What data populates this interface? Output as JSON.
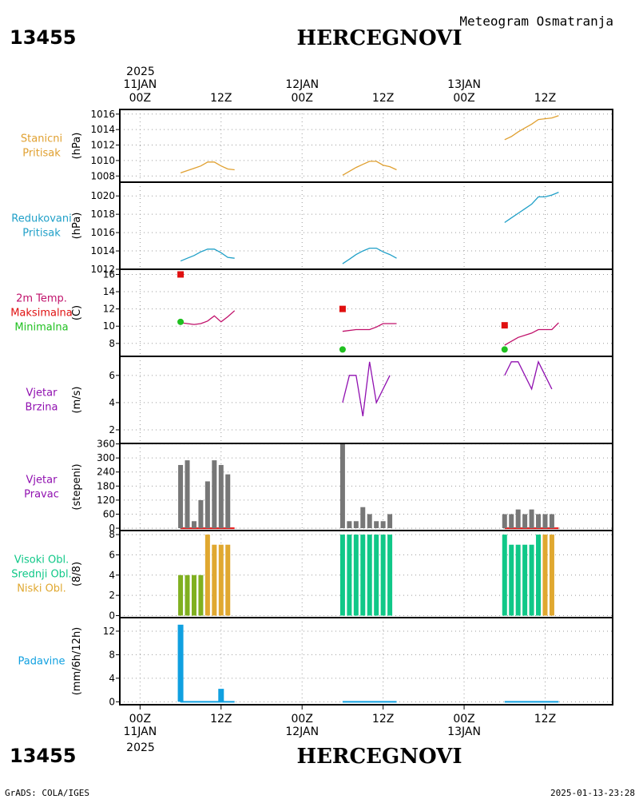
{
  "header": {
    "station_id": "13455",
    "station_name": "HERCEGNOVI",
    "product": "Meteogram Osmatranja"
  },
  "time_axis": {
    "top_year": "2025",
    "ticks": [
      {
        "t": 0,
        "hour": "00Z",
        "date": "11JAN"
      },
      {
        "t": 12,
        "hour": "12Z",
        "date": ""
      },
      {
        "t": 24,
        "hour": "00Z",
        "date": "12JAN"
      },
      {
        "t": 36,
        "hour": "12Z",
        "date": ""
      },
      {
        "t": 48,
        "hour": "00Z",
        "date": "13JAN"
      },
      {
        "t": 60,
        "hour": "12Z",
        "date": ""
      }
    ],
    "bottom_year": "2025",
    "range_hours": [
      -3,
      70
    ]
  },
  "colors": {
    "pressure": "#e0a030",
    "reduced": "#20a0c8",
    "temp": "#c0106a",
    "max": "#e01010",
    "min": "#20c020",
    "wind": "#9010b0",
    "dir": "#777777",
    "high_cloud": "#10c888",
    "mid_cloud": "#80b020",
    "low_cloud": "#e0a830",
    "precip": "#10a0e0"
  },
  "footer": {
    "left": "GrADS: COLA/IGES",
    "right": "2025-01-13-23:28"
  },
  "chart_data": [
    {
      "type": "line",
      "panel": "stanicni-pritisak",
      "labels": [
        "Stanicni",
        "Pritisak"
      ],
      "label_colors": [
        "pressure",
        "pressure"
      ],
      "ylabel": "(hPa)",
      "ylim": [
        1007.2,
        1016.6
      ],
      "yticks": [
        1008,
        1010,
        1012,
        1014,
        1016
      ],
      "series": [
        {
          "color": "pressure",
          "segments": [
            [
              [
                6,
                1008.4
              ],
              [
                7,
                1008.7
              ],
              [
                8,
                1009.0
              ],
              [
                9,
                1009.3
              ],
              [
                10,
                1009.8
              ],
              [
                11,
                1009.8
              ],
              [
                12,
                1009.3
              ],
              [
                13,
                1008.9
              ],
              [
                14,
                1008.8
              ]
            ],
            [
              [
                30,
                1008.1
              ],
              [
                31,
                1008.6
              ],
              [
                32,
                1009.1
              ],
              [
                33,
                1009.5
              ],
              [
                34,
                1009.9
              ],
              [
                35,
                1009.9
              ],
              [
                36,
                1009.4
              ],
              [
                37,
                1009.2
              ],
              [
                38,
                1008.8
              ]
            ],
            [
              [
                54,
                1012.7
              ],
              [
                55,
                1013.1
              ],
              [
                56,
                1013.7
              ],
              [
                57,
                1014.2
              ],
              [
                58,
                1014.7
              ],
              [
                59,
                1015.3
              ],
              [
                60,
                1015.4
              ],
              [
                61,
                1015.5
              ],
              [
                62,
                1015.8
              ]
            ]
          ]
        }
      ]
    },
    {
      "type": "line",
      "panel": "redukovani-pritisak",
      "labels": [
        "Redukovani",
        "Pritisak"
      ],
      "label_colors": [
        "reduced",
        "reduced"
      ],
      "ylabel": "(hPa)",
      "ylim": [
        1012,
        1021.5
      ],
      "yticks": [
        1012,
        1014,
        1016,
        1018,
        1020
      ],
      "series": [
        {
          "color": "reduced",
          "segments": [
            [
              [
                6,
                1012.9
              ],
              [
                7,
                1013.2
              ],
              [
                8,
                1013.5
              ],
              [
                9,
                1013.9
              ],
              [
                10,
                1014.2
              ],
              [
                11,
                1014.2
              ],
              [
                12,
                1013.8
              ],
              [
                13,
                1013.3
              ],
              [
                14,
                1013.2
              ]
            ],
            [
              [
                30,
                1012.6
              ],
              [
                31,
                1013.1
              ],
              [
                32,
                1013.6
              ],
              [
                33,
                1014.0
              ],
              [
                34,
                1014.3
              ],
              [
                35,
                1014.3
              ],
              [
                36,
                1013.9
              ],
              [
                37,
                1013.6
              ],
              [
                38,
                1013.2
              ]
            ],
            [
              [
                54,
                1017.1
              ],
              [
                55,
                1017.6
              ],
              [
                56,
                1018.1
              ],
              [
                57,
                1018.6
              ],
              [
                58,
                1019.1
              ],
              [
                59,
                1019.9
              ],
              [
                60,
                1019.9
              ],
              [
                61,
                1020.1
              ],
              [
                62,
                1020.4
              ]
            ]
          ]
        }
      ]
    },
    {
      "type": "line",
      "panel": "temperatura",
      "labels": [
        "2m Temp.",
        "Maksimalna",
        "Minimalna"
      ],
      "label_colors": [
        "temp",
        "max",
        "min"
      ],
      "ylabel": "(C)",
      "ylim": [
        6.5,
        16.6
      ],
      "yticks": [
        8,
        10,
        12,
        14,
        16
      ],
      "series": [
        {
          "color": "temp",
          "segments": [
            [
              [
                6,
                10.4
              ],
              [
                8,
                10.2
              ],
              [
                9,
                10.3
              ],
              [
                10,
                10.6
              ],
              [
                11,
                11.2
              ],
              [
                12,
                10.5
              ],
              [
                13,
                11.1
              ],
              [
                14,
                11.8
              ]
            ],
            [
              [
                30,
                9.4
              ],
              [
                32,
                9.6
              ],
              [
                34,
                9.6
              ],
              [
                35,
                9.9
              ],
              [
                36,
                10.3
              ],
              [
                38,
                10.3
              ]
            ],
            [
              [
                54,
                7.8
              ],
              [
                56,
                8.7
              ],
              [
                58,
                9.2
              ],
              [
                59,
                9.6
              ],
              [
                61,
                9.6
              ],
              [
                62,
                10.4
              ]
            ]
          ]
        }
      ],
      "markers": [
        {
          "kind": "square",
          "color": "max",
          "points": [
            [
              6,
              16.0
            ],
            [
              30,
              12.0
            ],
            [
              54,
              10.1
            ]
          ]
        },
        {
          "kind": "circle",
          "color": "min",
          "points": [
            [
              6,
              10.5
            ],
            [
              30,
              7.3
            ],
            [
              54,
              7.3
            ]
          ]
        }
      ]
    },
    {
      "type": "line",
      "panel": "vjetar-brzina",
      "labels": [
        "Vjetar",
        "Brzina"
      ],
      "label_colors": [
        "wind",
        "wind"
      ],
      "ylabel": "(m/s)",
      "ylim": [
        1,
        7.4
      ],
      "yticks": [
        2,
        4,
        6
      ],
      "series": [
        {
          "color": "wind",
          "segments": [
            [
              [
                6,
                1
              ],
              [
                14,
                1
              ]
            ],
            [
              [
                30,
                4
              ],
              [
                31,
                6
              ],
              [
                32,
                6
              ],
              [
                33,
                3
              ],
              [
                34,
                7
              ],
              [
                35,
                4
              ],
              [
                37,
                6
              ]
            ],
            [
              [
                54,
                6
              ],
              [
                55,
                7
              ],
              [
                56,
                7
              ],
              [
                58,
                5
              ],
              [
                59,
                7
              ],
              [
                61,
                5
              ]
            ]
          ]
        }
      ]
    },
    {
      "type": "bar",
      "panel": "vjetar-pravac",
      "labels": [
        "Vjetar",
        "Pravac"
      ],
      "label_colors": [
        "wind",
        "wind"
      ],
      "ylabel": "(stepeni)",
      "ylim": [
        -10,
        362
      ],
      "yticks": [
        0,
        60,
        120,
        180,
        240,
        300,
        360
      ],
      "bar_color": "dir",
      "x": [
        6,
        7,
        8,
        9,
        10,
        11,
        12,
        13,
        30,
        31,
        32,
        33,
        34,
        35,
        36,
        37,
        54,
        55,
        56,
        57,
        58,
        59,
        60,
        61
      ],
      "values": [
        270,
        290,
        30,
        120,
        200,
        290,
        270,
        230,
        360,
        30,
        30,
        90,
        60,
        30,
        30,
        60,
        60,
        60,
        80,
        60,
        80,
        60,
        60,
        60
      ],
      "zero_line": {
        "color": "max",
        "segments": [
          [
            6,
            14
          ],
          [
            54,
            62
          ]
        ]
      }
    },
    {
      "type": "bar",
      "panel": "oblaci",
      "labels": [
        "Visoki Obl.",
        "Srednji Obl.",
        "Niski Obl."
      ],
      "label_colors": [
        "high_cloud",
        "high_cloud",
        "low_cloud"
      ],
      "ylabel": "(8/8)",
      "ylim": [
        -0.2,
        8.4
      ],
      "yticks": [
        0,
        2,
        4,
        6,
        8
      ],
      "x": [
        6,
        7,
        8,
        9,
        10,
        11,
        12,
        13,
        30,
        31,
        32,
        33,
        34,
        35,
        36,
        37,
        54,
        55,
        56,
        57,
        58,
        59,
        60,
        61
      ],
      "values": [
        4,
        4,
        4,
        4,
        8,
        7,
        7,
        7,
        8,
        8,
        8,
        8,
        8,
        8,
        8,
        8,
        8,
        7,
        7,
        7,
        7,
        8,
        8,
        8
      ],
      "bar_colors": [
        "mid_cloud",
        "mid_cloud",
        "mid_cloud",
        "mid_cloud",
        "low_cloud",
        "low_cloud",
        "low_cloud",
        "low_cloud",
        "high_cloud",
        "high_cloud",
        "high_cloud",
        "high_cloud",
        "high_cloud",
        "high_cloud",
        "high_cloud",
        "high_cloud",
        "high_cloud",
        "high_cloud",
        "high_cloud",
        "high_cloud",
        "high_cloud",
        "high_cloud",
        "low_cloud",
        "low_cloud"
      ]
    },
    {
      "type": "bar",
      "panel": "padavine",
      "labels": [
        "Padavine"
      ],
      "label_colors": [
        "precip"
      ],
      "ylabel": "(mm/6h/12h)",
      "ylim": [
        -0.5,
        14.3
      ],
      "yticks": [
        0,
        4,
        8,
        12
      ],
      "bar_color": "precip",
      "x": [
        6,
        12
      ],
      "values": [
        13.1,
        2.2
      ],
      "zero_line": {
        "color": "precip",
        "segments": [
          [
            6,
            14
          ],
          [
            30,
            38
          ],
          [
            54,
            62
          ]
        ]
      }
    }
  ]
}
